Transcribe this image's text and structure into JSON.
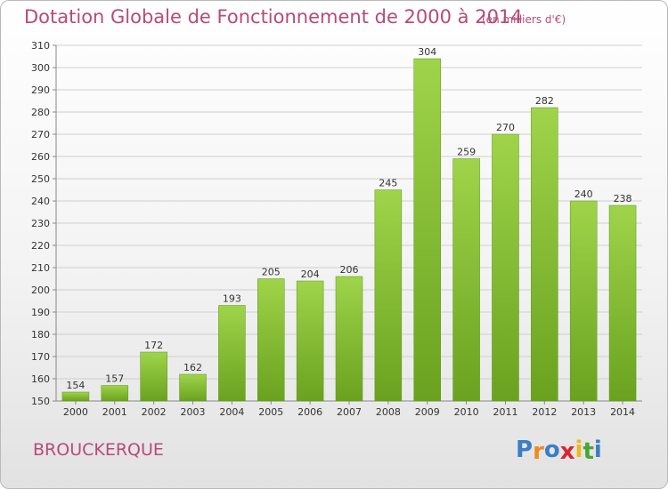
{
  "chart_data": {
    "type": "bar",
    "title": "Dotation Globale de Fonctionnement de 2000 à 2014",
    "subtitle": "(en milliers d'€)",
    "categories": [
      "2000",
      "2001",
      "2002",
      "2003",
      "2004",
      "2005",
      "2006",
      "2007",
      "2008",
      "2009",
      "2010",
      "2011",
      "2012",
      "2013",
      "2014"
    ],
    "values": [
      154,
      157,
      172,
      162,
      193,
      205,
      204,
      206,
      245,
      304,
      259,
      270,
      282,
      240,
      238
    ],
    "ylim": [
      150,
      310
    ],
    "yticks": [
      150,
      160,
      170,
      180,
      190,
      200,
      210,
      220,
      230,
      240,
      250,
      260,
      270,
      280,
      290,
      300,
      310
    ],
    "grid": true,
    "bar_color": "#7dbb2f"
  },
  "commune": "BROUCKERQUE",
  "logo": {
    "text": "Proxiti",
    "letters": [
      {
        "ch": "P",
        "color": "#3a7fc4"
      },
      {
        "ch": "r",
        "color": "#f08a1c"
      },
      {
        "ch": "o",
        "color": "#3a7fc4"
      },
      {
        "ch": "x",
        "color": "#d7262f"
      },
      {
        "ch": "i",
        "color": "#f0b81c"
      },
      {
        "ch": "t",
        "color": "#4aa536"
      },
      {
        "ch": "i",
        "color": "#3a7fc4"
      }
    ]
  }
}
